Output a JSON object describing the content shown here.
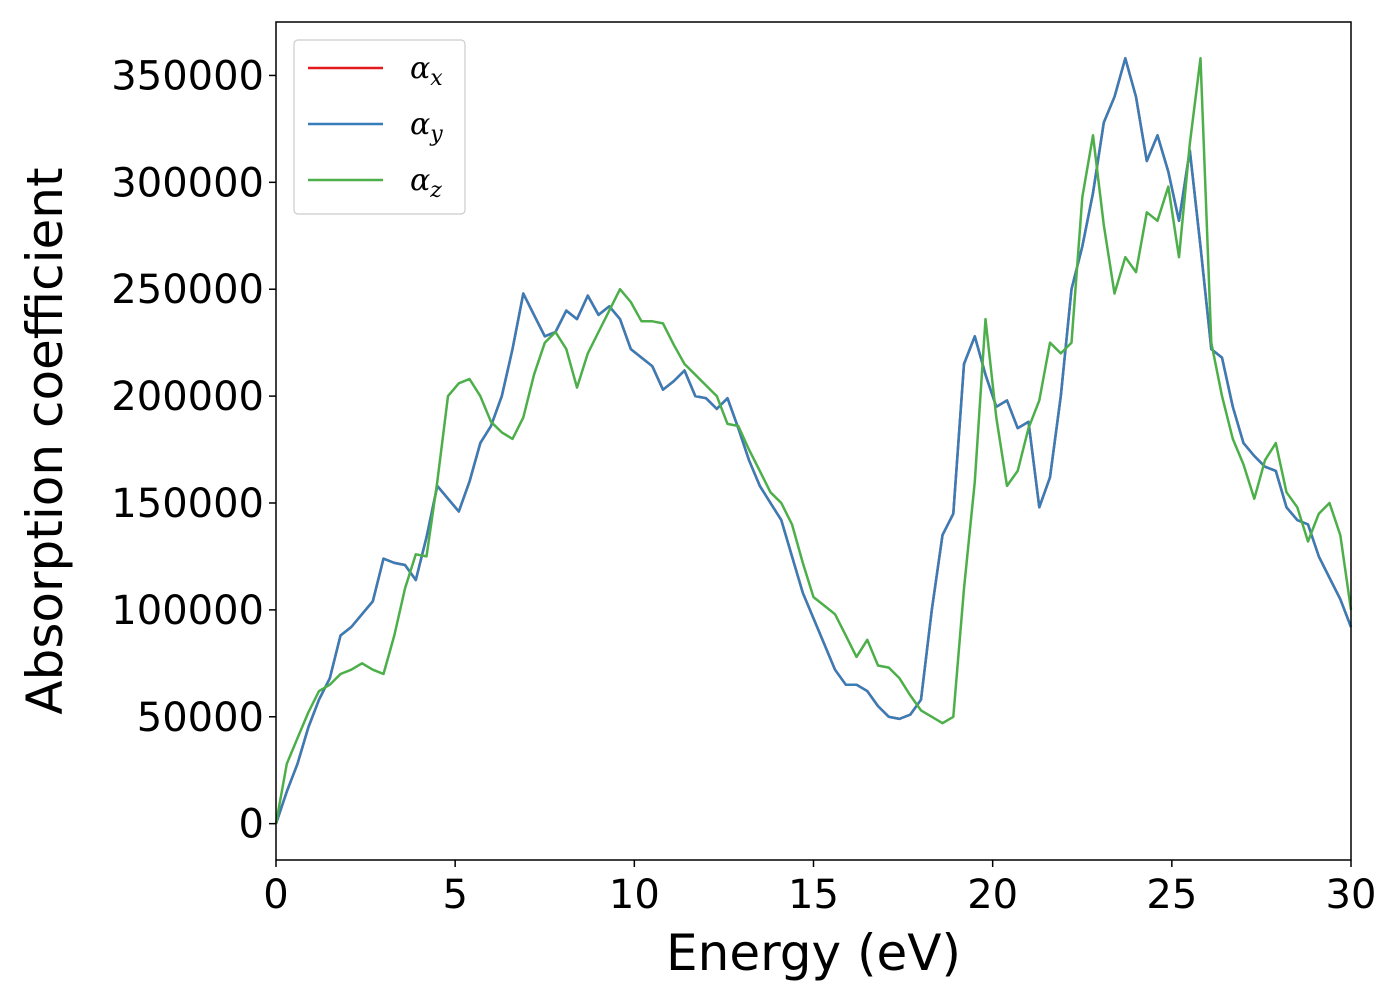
{
  "chart_data": {
    "type": "line",
    "title": "",
    "xlabel": "Energy (eV)",
    "ylabel": "Absorption coefficient",
    "xlim": [
      0,
      30
    ],
    "ylim": [
      -17000,
      375000
    ],
    "xticks": [
      0,
      5,
      10,
      15,
      20,
      25,
      30
    ],
    "xtick_labels": [
      "0",
      "5",
      "10",
      "15",
      "20",
      "25",
      "30"
    ],
    "yticks": [
      0,
      50000,
      100000,
      150000,
      200000,
      250000,
      300000,
      350000
    ],
    "ytick_labels": [
      "0",
      "50000",
      "100000",
      "150000",
      "200000",
      "250000",
      "300000",
      "350000"
    ],
    "grid": false,
    "legend_position": "top-left",
    "series": [
      {
        "name": "αx",
        "symbol": "α",
        "subscript": "x",
        "color": "#e41a1c",
        "x": [
          0,
          0.3,
          0.6,
          0.9,
          1.2,
          1.5,
          1.8,
          2.1,
          2.4,
          2.7,
          3.0,
          3.3,
          3.6,
          3.9,
          4.2,
          4.5,
          4.8,
          5.1,
          5.4,
          5.7,
          6.0,
          6.3,
          6.6,
          6.9,
          7.2,
          7.5,
          7.8,
          8.1,
          8.4,
          8.7,
          9.0,
          9.3,
          9.6,
          9.9,
          10.2,
          10.5,
          10.8,
          11.1,
          11.4,
          11.7,
          12.0,
          12.3,
          12.6,
          12.9,
          13.2,
          13.5,
          13.8,
          14.1,
          14.4,
          14.7,
          15.0,
          15.3,
          15.6,
          15.9,
          16.2,
          16.5,
          16.8,
          17.1,
          17.4,
          17.7,
          18.0,
          18.3,
          18.6,
          18.9,
          19.2,
          19.5,
          19.8,
          20.1,
          20.4,
          20.7,
          21.0,
          21.3,
          21.6,
          21.9,
          22.2,
          22.5,
          22.8,
          23.1,
          23.4,
          23.7,
          24.0,
          24.3,
          24.6,
          24.9,
          25.2,
          25.5,
          25.8,
          26.1,
          26.4,
          26.7,
          27.0,
          27.3,
          27.6,
          27.9,
          28.2,
          28.5,
          28.8,
          29.1,
          29.4,
          29.7,
          30.0
        ],
        "y": [
          0,
          15000,
          28000,
          45000,
          58000,
          68000,
          88000,
          92000,
          98000,
          104000,
          124000,
          122000,
          121000,
          114000,
          134000,
          158000,
          152000,
          146000,
          160000,
          178000,
          186000,
          200000,
          222000,
          248000,
          238000,
          228000,
          230000,
          240000,
          236000,
          247000,
          238000,
          242000,
          236000,
          222000,
          218000,
          214000,
          203000,
          207000,
          212000,
          200000,
          199000,
          194000,
          199000,
          185000,
          170000,
          158000,
          150000,
          142000,
          125000,
          108000,
          96000,
          84000,
          72000,
          65000,
          65000,
          62000,
          55000,
          50000,
          49000,
          51000,
          58000,
          100000,
          135000,
          145000,
          215000,
          228000,
          210000,
          195000,
          198000,
          185000,
          188000,
          148000,
          162000,
          200000,
          250000,
          270000,
          295000,
          328000,
          340000,
          358000,
          340000,
          310000,
          322000,
          305000,
          282000,
          315000,
          270000,
          222000,
          218000,
          195000,
          178000,
          172000,
          167000,
          165000,
          148000,
          142000,
          140000,
          125000,
          115000,
          105000,
          92000
        ]
      },
      {
        "name": "αy",
        "symbol": "α",
        "subscript": "y",
        "color": "#377eb8",
        "x": [
          0,
          0.3,
          0.6,
          0.9,
          1.2,
          1.5,
          1.8,
          2.1,
          2.4,
          2.7,
          3.0,
          3.3,
          3.6,
          3.9,
          4.2,
          4.5,
          4.8,
          5.1,
          5.4,
          5.7,
          6.0,
          6.3,
          6.6,
          6.9,
          7.2,
          7.5,
          7.8,
          8.1,
          8.4,
          8.7,
          9.0,
          9.3,
          9.6,
          9.9,
          10.2,
          10.5,
          10.8,
          11.1,
          11.4,
          11.7,
          12.0,
          12.3,
          12.6,
          12.9,
          13.2,
          13.5,
          13.8,
          14.1,
          14.4,
          14.7,
          15.0,
          15.3,
          15.6,
          15.9,
          16.2,
          16.5,
          16.8,
          17.1,
          17.4,
          17.7,
          18.0,
          18.3,
          18.6,
          18.9,
          19.2,
          19.5,
          19.8,
          20.1,
          20.4,
          20.7,
          21.0,
          21.3,
          21.6,
          21.9,
          22.2,
          22.5,
          22.8,
          23.1,
          23.4,
          23.7,
          24.0,
          24.3,
          24.6,
          24.9,
          25.2,
          25.5,
          25.8,
          26.1,
          26.4,
          26.7,
          27.0,
          27.3,
          27.6,
          27.9,
          28.2,
          28.5,
          28.8,
          29.1,
          29.4,
          29.7,
          30.0
        ],
        "y": [
          0,
          15000,
          28000,
          45000,
          58000,
          68000,
          88000,
          92000,
          98000,
          104000,
          124000,
          122000,
          121000,
          114000,
          134000,
          158000,
          152000,
          146000,
          160000,
          178000,
          186000,
          200000,
          222000,
          248000,
          238000,
          228000,
          230000,
          240000,
          236000,
          247000,
          238000,
          242000,
          236000,
          222000,
          218000,
          214000,
          203000,
          207000,
          212000,
          200000,
          199000,
          194000,
          199000,
          185000,
          170000,
          158000,
          150000,
          142000,
          125000,
          108000,
          96000,
          84000,
          72000,
          65000,
          65000,
          62000,
          55000,
          50000,
          49000,
          51000,
          58000,
          100000,
          135000,
          145000,
          215000,
          228000,
          210000,
          195000,
          198000,
          185000,
          188000,
          148000,
          162000,
          200000,
          250000,
          270000,
          295000,
          328000,
          340000,
          358000,
          340000,
          310000,
          322000,
          305000,
          282000,
          315000,
          270000,
          222000,
          218000,
          195000,
          178000,
          172000,
          167000,
          165000,
          148000,
          142000,
          140000,
          125000,
          115000,
          105000,
          92000
        ]
      },
      {
        "name": "αz",
        "symbol": "α",
        "subscript": "z",
        "color": "#4daf4a",
        "x": [
          0,
          0.3,
          0.6,
          0.9,
          1.2,
          1.5,
          1.8,
          2.1,
          2.4,
          2.7,
          3.0,
          3.3,
          3.6,
          3.9,
          4.2,
          4.5,
          4.8,
          5.1,
          5.4,
          5.7,
          6.0,
          6.3,
          6.6,
          6.9,
          7.2,
          7.5,
          7.8,
          8.1,
          8.4,
          8.7,
          9.0,
          9.3,
          9.6,
          9.9,
          10.2,
          10.5,
          10.8,
          11.1,
          11.4,
          11.7,
          12.0,
          12.3,
          12.6,
          12.9,
          13.2,
          13.5,
          13.8,
          14.1,
          14.4,
          14.7,
          15.0,
          15.3,
          15.6,
          15.9,
          16.2,
          16.5,
          16.8,
          17.1,
          17.4,
          17.7,
          18.0,
          18.3,
          18.6,
          18.9,
          19.2,
          19.5,
          19.8,
          20.1,
          20.4,
          20.7,
          21.0,
          21.3,
          21.6,
          21.9,
          22.2,
          22.5,
          22.8,
          23.1,
          23.4,
          23.7,
          24.0,
          24.3,
          24.6,
          24.9,
          25.2,
          25.5,
          25.8,
          26.1,
          26.4,
          26.7,
          27.0,
          27.3,
          27.6,
          27.9,
          28.2,
          28.5,
          28.8,
          29.1,
          29.4,
          29.7,
          30.0
        ],
        "y": [
          0,
          28000,
          40000,
          52000,
          62000,
          65000,
          70000,
          72000,
          75000,
          72000,
          70000,
          88000,
          110000,
          126000,
          125000,
          160000,
          200000,
          206000,
          208000,
          200000,
          188000,
          183000,
          180000,
          190000,
          210000,
          225000,
          230000,
          222000,
          204000,
          220000,
          230000,
          240000,
          250000,
          244000,
          235000,
          235000,
          234000,
          224000,
          215000,
          210000,
          205000,
          200000,
          187000,
          186000,
          175000,
          165000,
          155000,
          150000,
          140000,
          122000,
          106000,
          102000,
          98000,
          88000,
          78000,
          86000,
          74000,
          73000,
          68000,
          60000,
          53000,
          50000,
          47000,
          50000,
          110000,
          160000,
          236000,
          190000,
          158000,
          165000,
          185000,
          198000,
          225000,
          220000,
          225000,
          293000,
          322000,
          280000,
          248000,
          265000,
          258000,
          286000,
          282000,
          298000,
          265000,
          318000,
          358000,
          225000,
          200000,
          180000,
          168000,
          152000,
          170000,
          178000,
          155000,
          148000,
          132000,
          145000,
          150000,
          135000,
          100000
        ]
      }
    ]
  }
}
